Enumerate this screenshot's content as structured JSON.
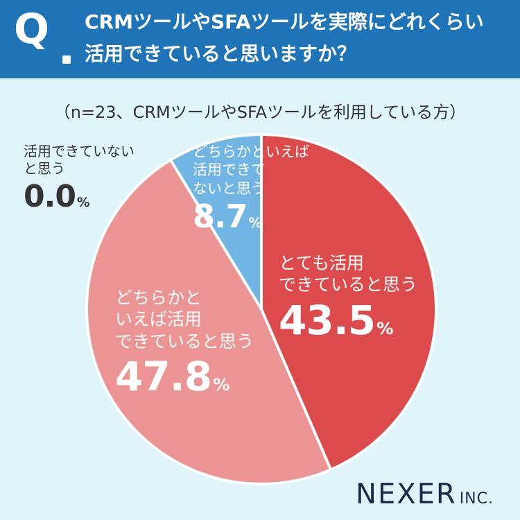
{
  "question": {
    "mark": "Q",
    "line1": "CRMツールやSFAツールを実際にどれくらい",
    "line2": "活用できていると思いますか？"
  },
  "subtitle": "（n=23、CRMツールやSFAツールを利用している方）",
  "logo": {
    "main": "NEXER",
    "suffix": "INC."
  },
  "colors": {
    "header": "#1f73b7",
    "background": "#e0f5f9",
    "slice_1": "#dc4a4b",
    "slice_2": "#ec9393",
    "slice_3": "#71b5e4"
  },
  "labels": {
    "s1": {
      "line1": "とても活用",
      "line2": "できていると思う",
      "value": "43.5"
    },
    "s2": {
      "line1": "どちらかと",
      "line2": "いえば活用",
      "line3": "できていると思う",
      "value": "47.8"
    },
    "s3": {
      "line1": "どちらかといえば",
      "line2": "活用できて",
      "line3": "ないと思う",
      "value": "8.7"
    },
    "s4": {
      "line1": "活用できていない",
      "line2": "と思う",
      "value": "0.0"
    },
    "unit": "%"
  },
  "chart_data": {
    "type": "pie",
    "categories": [
      "とても活用できていると思う",
      "どちらかといえば活用できていると思う",
      "どちらかといえば活用できてないと思う",
      "活用できていないと思う"
    ],
    "values": [
      43.5,
      47.8,
      8.7,
      0.0
    ],
    "unit": "%"
  }
}
